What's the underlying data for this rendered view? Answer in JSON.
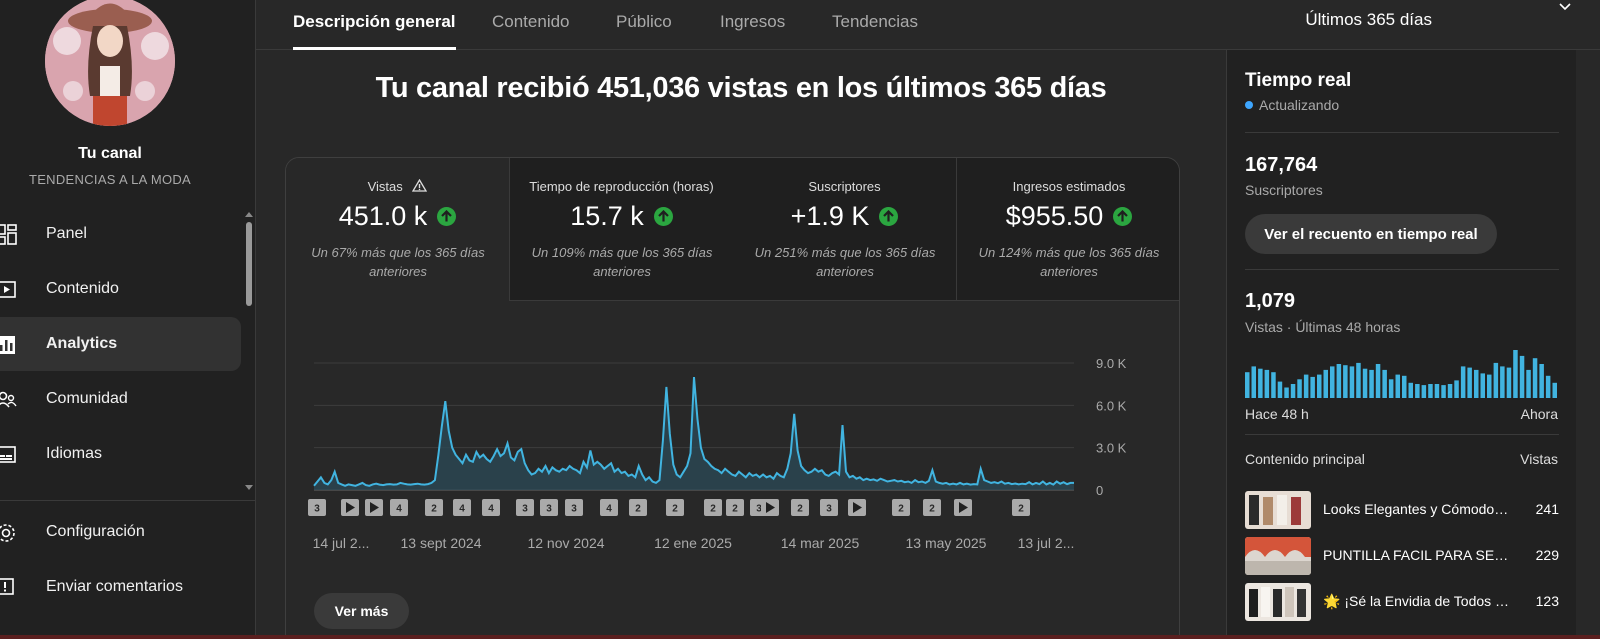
{
  "sidebar": {
    "channel_title": "Tu canal",
    "channel_name": "TENDENCIAS A LA MODA",
    "items": [
      {
        "label": "Panel",
        "icon": "dashboard-icon"
      },
      {
        "label": "Contenido",
        "icon": "content-icon"
      },
      {
        "label": "Analytics",
        "icon": "analytics-icon",
        "active": true
      },
      {
        "label": "Comunidad",
        "icon": "community-icon"
      },
      {
        "label": "Idiomas",
        "icon": "subtitles-icon"
      }
    ],
    "bottom_items": [
      {
        "label": "Configuración",
        "icon": "gear-icon"
      },
      {
        "label": "Enviar comentarios",
        "icon": "feedback-icon"
      }
    ]
  },
  "tabs": [
    "Descripción general",
    "Contenido",
    "Público",
    "Ingresos",
    "Tendencias"
  ],
  "period": "Últimos 365 días",
  "headline": "Tu canal recibió 451,036 vistas en los últimos 365 días",
  "metrics": [
    {
      "label": "Vistas",
      "value": "451.0 k",
      "note": "Un 67% más que los 365 días anteriores"
    },
    {
      "label": "Tiempo de reproducción (horas)",
      "value": "15.7 k",
      "note": "Un 109% más que los 365 días anteriores"
    },
    {
      "label": "Suscriptores",
      "value": "+1.9 K",
      "note": "Un 251% más que los 365 días anteriores"
    },
    {
      "label": "Ingresos estimados",
      "value": "$955.50",
      "note": "Un 124% más que los 365 días anteriores"
    }
  ],
  "chart_data": {
    "type": "area",
    "ylabel": "",
    "ylim": [
      0,
      9000
    ],
    "yticks": [
      {
        "v": 0,
        "label": "0"
      },
      {
        "v": 3000,
        "label": "3.0 K"
      },
      {
        "v": 6000,
        "label": "6.0 K"
      },
      {
        "v": 9000,
        "label": "9.0 K"
      }
    ],
    "x_tick_labels": [
      "14 jul 2...",
      "13 sept 2024",
      "12 nov 2024",
      "12 ene 2025",
      "14 mar 2025",
      "13 may 2025",
      "13 jul 2..."
    ],
    "values": [
      300,
      600,
      900,
      500,
      400,
      700,
      1300,
      500,
      400,
      300,
      400,
      350,
      300,
      400,
      500,
      350,
      300,
      400,
      450,
      380,
      350,
      400,
      420,
      380,
      400,
      500,
      450,
      400,
      380,
      420,
      450,
      400,
      380,
      420,
      500,
      700,
      2500,
      4500,
      6300,
      4200,
      3000,
      2500,
      2200,
      1900,
      2500,
      2100,
      2000,
      2700,
      2300,
      2500,
      2200,
      2000,
      2400,
      2900,
      2400,
      2600,
      3300,
      2300,
      2100,
      2700,
      2900,
      1900,
      1400,
      1100,
      1200,
      1500,
      1300,
      1700,
      1200,
      1600,
      1400,
      1300,
      1500,
      1400,
      1700,
      1500,
      1400,
      1200,
      2000,
      1600,
      2800,
      1800,
      2000,
      1800,
      1500,
      1700,
      1900,
      1300,
      1500,
      1200,
      1300,
      1000,
      1100,
      900,
      1700,
      1100,
      700,
      900,
      600,
      500,
      700,
      3500,
      7300,
      4000,
      1800,
      1100,
      900,
      1300,
      1700,
      2600,
      8000,
      5000,
      3000,
      2200,
      2000,
      1700,
      1500,
      1400,
      1200,
      1500,
      1300,
      1100,
      1000,
      1300,
      1100,
      900,
      1200,
      1000,
      1100,
      900,
      1100,
      900,
      1000,
      800,
      1200,
      1000,
      900,
      1500,
      2600,
      5400,
      2800,
      1700,
      1400,
      1200,
      1300,
      1500,
      1300,
      1400,
      1100,
      1000,
      1200,
      1300,
      1100,
      4600,
      1300,
      900,
      1000,
      800,
      900,
      700,
      800,
      700,
      750,
      650,
      800,
      700,
      600,
      650,
      700,
      600,
      650,
      550,
      600,
      500,
      700,
      550,
      600,
      500,
      650,
      1400,
      600,
      500,
      450,
      500,
      400,
      450,
      400,
      500,
      400,
      450,
      380,
      420,
      400,
      1500,
      700,
      600,
      500,
      550,
      480,
      600,
      450,
      500,
      420,
      460,
      400,
      450,
      420,
      550,
      400,
      500,
      420,
      600,
      400,
      500,
      380,
      600,
      450,
      550,
      420,
      500,
      500
    ]
  },
  "chart_badges": [
    "3",
    "play",
    "play",
    "4",
    "2",
    "4",
    "4",
    "3",
    "3",
    "3",
    "4",
    "2",
    "2",
    "2",
    "2",
    "3",
    "play",
    "2",
    "3",
    "play",
    "2",
    "2",
    "play",
    "2"
  ],
  "ver_mas": "Ver más",
  "realtime": {
    "title": "Tiempo real",
    "status": "Actualizando",
    "subs_value": "167,764",
    "subs_label": "Suscriptores",
    "button": "Ver el recuento en tiempo real",
    "views_value": "1,079",
    "views_label": "Vistas · Últimas 48 horas",
    "mini_values": [
      22,
      27,
      25,
      24,
      22,
      14,
      9,
      12,
      16,
      20,
      18,
      20,
      24,
      27,
      29,
      28,
      27,
      30,
      25,
      24,
      29,
      24,
      16,
      20,
      19,
      13,
      12,
      11,
      12,
      12,
      11,
      12,
      15,
      27,
      26,
      24,
      21,
      20,
      30,
      27,
      26,
      41,
      36,
      24,
      34,
      29,
      19,
      13
    ],
    "mini_start": "Hace 48 h",
    "mini_end": "Ahora",
    "top_label": "Contenido principal",
    "top_views_label": "Vistas",
    "top_content": [
      {
        "title": "Looks Elegantes y Cómodos para...",
        "views": "241"
      },
      {
        "title": "PUNTILLA FACIL PARA SERVILLETAS",
        "views": "229"
      },
      {
        "title": "🌟 ¡Sé la Envidia de Todos con...",
        "views": "123"
      }
    ]
  },
  "colors": {
    "accent": "#3ea6ff",
    "chart_line": "#41b4e0",
    "up": "#2ba640"
  }
}
